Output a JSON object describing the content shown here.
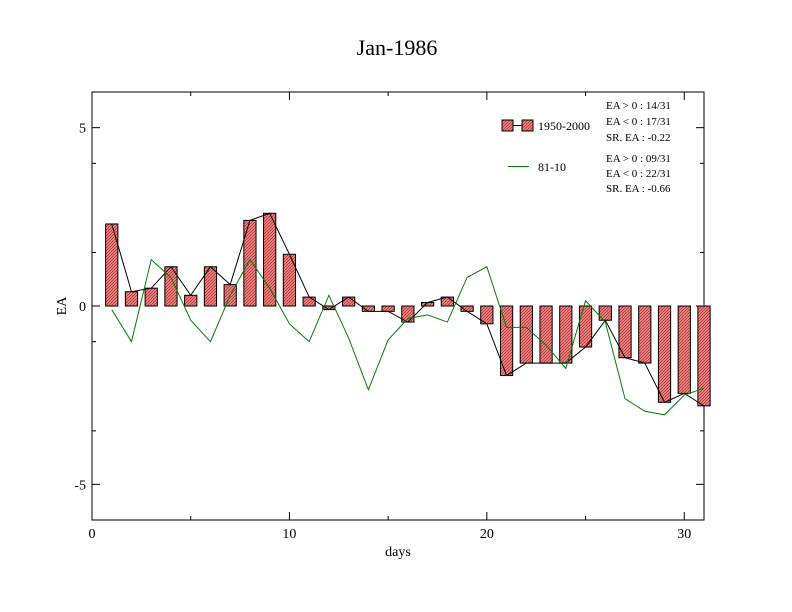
{
  "chart_data": {
    "type": "bar",
    "title": "Jan-1986",
    "xlabel": "days",
    "ylabel": "EA",
    "xlim": [
      0,
      31
    ],
    "ylim": [
      -6,
      6
    ],
    "xticks": [
      0,
      10,
      20,
      30
    ],
    "yticks": [
      -5,
      0,
      5
    ],
    "x": [
      1,
      2,
      3,
      4,
      5,
      6,
      7,
      8,
      9,
      10,
      11,
      12,
      13,
      14,
      15,
      16,
      17,
      18,
      19,
      20,
      21,
      22,
      23,
      24,
      25,
      26,
      27,
      28,
      29,
      30,
      31
    ],
    "series": [
      {
        "name": "1950-2000",
        "type": "bar+line",
        "bar_color": "#f08080",
        "line_color": "#000000",
        "values": [
          2.3,
          0.4,
          0.5,
          1.1,
          0.3,
          1.1,
          0.6,
          2.4,
          2.6,
          1.45,
          0.25,
          -0.1,
          0.25,
          -0.15,
          -0.15,
          -0.45,
          0.1,
          0.25,
          -0.15,
          -0.5,
          -1.95,
          -1.6,
          -1.6,
          -1.6,
          -1.15,
          -0.4,
          -1.45,
          -1.6,
          -2.7,
          -2.45,
          -2.8
        ]
      },
      {
        "name": "81-10",
        "type": "line",
        "line_color": "#008000",
        "values": [
          -0.1,
          -1.0,
          1.3,
          0.8,
          -0.4,
          -1.0,
          0.3,
          1.3,
          0.5,
          -0.5,
          -1.0,
          0.3,
          -0.9,
          -2.35,
          -0.95,
          -0.35,
          -0.25,
          -0.45,
          0.8,
          1.1,
          -0.6,
          -0.6,
          -1.1,
          -1.75,
          0.15,
          -0.45,
          -2.6,
          -2.95,
          -3.05,
          -2.5,
          -2.3
        ]
      }
    ],
    "stats": [
      {
        "series": "1950-2000",
        "lines": [
          "EA > 0 : 14/31",
          "EA < 0 : 17/31",
          "SR. EA : -0.22"
        ]
      },
      {
        "series": "81-10",
        "lines": [
          "EA > 0 : 09/31",
          "EA < 0 : 22/31",
          "SR. EA : -0.66"
        ]
      }
    ],
    "legend_position": "top-right"
  }
}
